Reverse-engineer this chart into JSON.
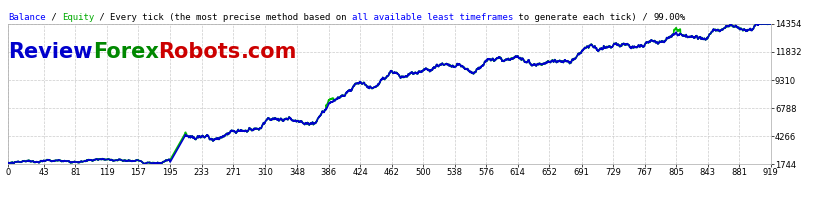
{
  "title_parts": [
    "Balance",
    " / ",
    "Equity",
    " / ",
    "Every tick (the most precise method based on ",
    "all available least timeframes",
    " to generate each tick)",
    " / ",
    "99.00%"
  ],
  "title_colors": [
    "#0000ff",
    "#000000",
    "#00aa00",
    "#000000",
    "#000000",
    "#0000ff",
    "#000000",
    "#000000",
    "#000000"
  ],
  "watermark_parts": [
    "Review",
    "Forex",
    "Robots",
    ".com"
  ],
  "watermark_colors": [
    "#0000cc",
    "#008800",
    "#cc0000",
    "#cc0000"
  ],
  "xmin": 0,
  "xmax": 919,
  "ymin": 1744,
  "ymax": 14354,
  "yticks": [
    1744,
    4266,
    6788,
    9310,
    11832,
    14354
  ],
  "xticks": [
    0,
    43,
    81,
    119,
    157,
    195,
    233,
    271,
    310,
    348,
    386,
    424,
    462,
    500,
    538,
    576,
    614,
    652,
    691,
    729,
    767,
    805,
    843,
    881,
    919
  ],
  "bg_color": "#ffffff",
  "grid_color": "#cccccc",
  "balance_color": "#0000cc",
  "equity_color": "#00bb00",
  "line_width": 1.2,
  "title_fontsize": 6.5,
  "watermark_fontsize": 15
}
